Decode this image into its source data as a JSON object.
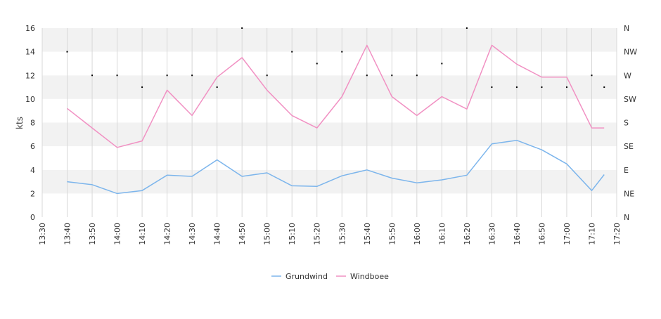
{
  "chart_data": {
    "type": "line",
    "ylabel": "kts",
    "ylim": [
      0,
      16
    ],
    "y_ticks": [
      "0",
      "2",
      "4",
      "6",
      "8",
      "10",
      "12",
      "14",
      "16"
    ],
    "x_range_minutes": [
      810,
      1040
    ],
    "x_ticks": [
      {
        "label": "13:30",
        "minutes": 810
      },
      {
        "label": "13:40",
        "minutes": 820
      },
      {
        "label": "13:50",
        "minutes": 830
      },
      {
        "label": "14:00",
        "minutes": 840
      },
      {
        "label": "14:10",
        "minutes": 850
      },
      {
        "label": "14:20",
        "minutes": 860
      },
      {
        "label": "14:30",
        "minutes": 870
      },
      {
        "label": "14:40",
        "minutes": 880
      },
      {
        "label": "14:50",
        "minutes": 890
      },
      {
        "label": "15:00",
        "minutes": 900
      },
      {
        "label": "15:10",
        "minutes": 910
      },
      {
        "label": "15:20",
        "minutes": 920
      },
      {
        "label": "15:30",
        "minutes": 930
      },
      {
        "label": "15:40",
        "minutes": 940
      },
      {
        "label": "15:50",
        "minutes": 950
      },
      {
        "label": "16:00",
        "minutes": 960
      },
      {
        "label": "16:10",
        "minutes": 970
      },
      {
        "label": "16:20",
        "minutes": 980
      },
      {
        "label": "16:30",
        "minutes": 990
      },
      {
        "label": "16:40",
        "minutes": 1000
      },
      {
        "label": "16:50",
        "minutes": 1010
      },
      {
        "label": "17:00",
        "minutes": 1020
      },
      {
        "label": "17:10",
        "minutes": 1030
      },
      {
        "label": "17:20",
        "minutes": 1040
      }
    ],
    "direction_axis": {
      "labels": [
        "N",
        "NE",
        "E",
        "SE",
        "S",
        "SW",
        "W",
        "NW",
        "N"
      ]
    },
    "series": [
      {
        "name": "Grundwind",
        "color": "#7cb5ec",
        "x_minutes": [
          820,
          830,
          840,
          850,
          860,
          870,
          880,
          890,
          900,
          910,
          920,
          930,
          940,
          950,
          960,
          970,
          980,
          990,
          1000,
          1010,
          1020,
          1030,
          1035
        ],
        "values": [
          3.0,
          2.75,
          2.0,
          2.25,
          3.55,
          3.45,
          4.85,
          3.45,
          3.75,
          2.65,
          2.6,
          3.5,
          4.0,
          3.3,
          2.9,
          3.15,
          3.55,
          6.2,
          6.5,
          5.7,
          4.5,
          2.25,
          3.6
        ]
      },
      {
        "name": "Windboee",
        "color": "#f191c3",
        "x_minutes": [
          820,
          830,
          840,
          850,
          860,
          870,
          880,
          890,
          900,
          910,
          920,
          930,
          940,
          950,
          960,
          970,
          980,
          990,
          1000,
          1010,
          1020,
          1030,
          1035
        ],
        "values": [
          9.2,
          7.55,
          5.9,
          6.45,
          10.75,
          8.6,
          11.85,
          13.5,
          10.75,
          8.6,
          7.55,
          10.2,
          14.55,
          10.2,
          8.6,
          10.2,
          9.15,
          14.55,
          12.95,
          11.85,
          11.85,
          7.55,
          7.55
        ]
      }
    ],
    "direction_points": {
      "color": "#000000",
      "x_minutes": [
        820,
        830,
        840,
        850,
        860,
        870,
        880,
        890,
        900,
        910,
        920,
        930,
        940,
        950,
        960,
        970,
        980,
        990,
        1000,
        1010,
        1020,
        1030,
        1035
      ],
      "values": [
        14,
        12,
        12,
        11,
        12,
        12,
        11,
        16,
        12,
        14,
        13,
        14,
        12,
        12,
        12,
        13,
        16,
        11,
        11,
        11,
        11,
        12,
        11
      ]
    },
    "legend": {
      "position": "bottom-center"
    },
    "grid": true
  }
}
